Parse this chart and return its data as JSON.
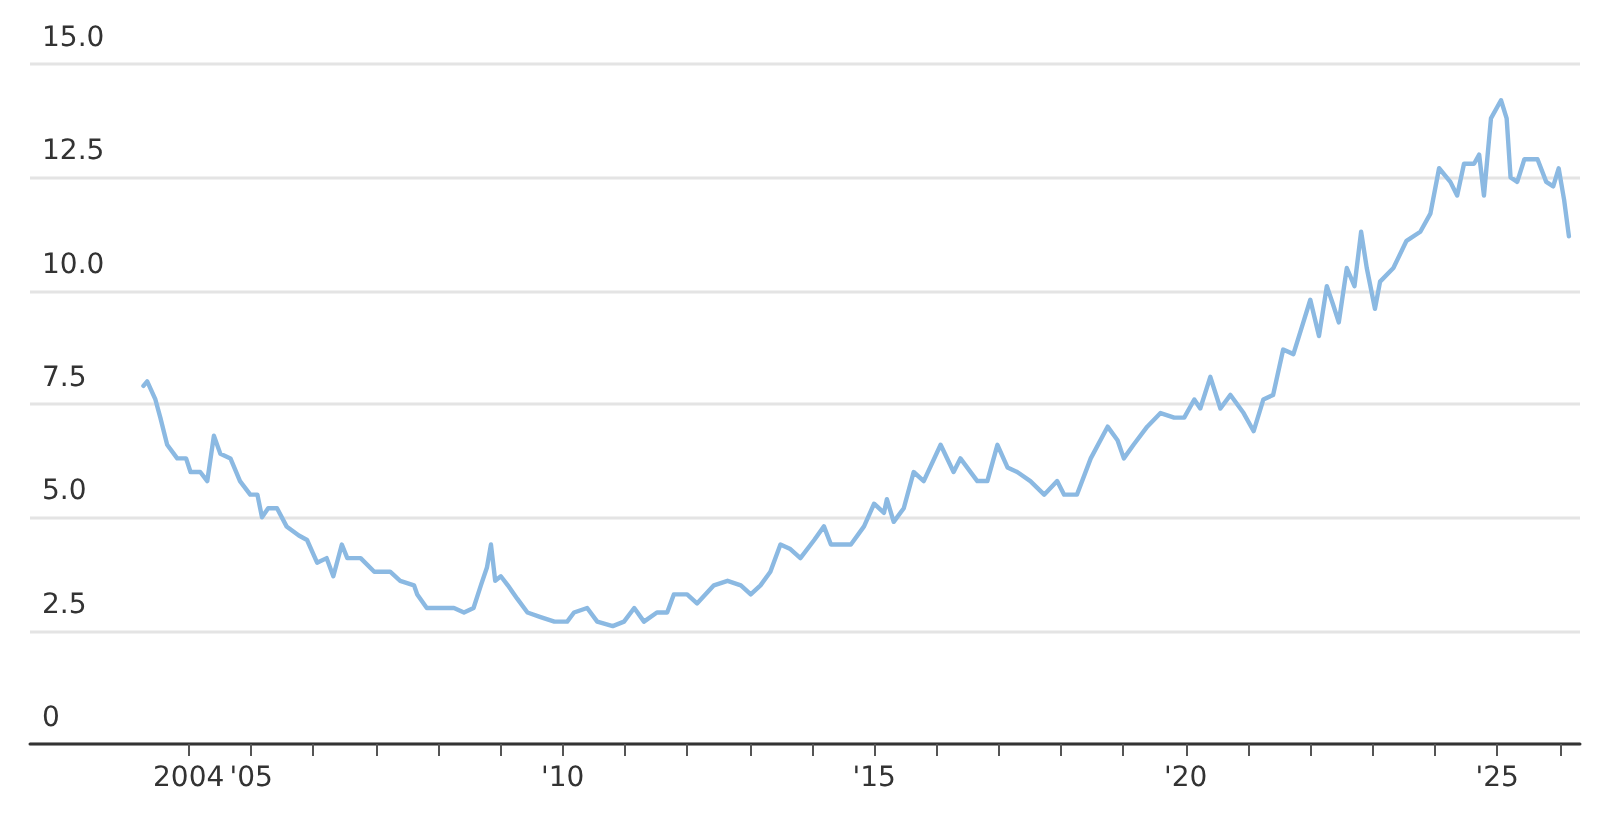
{
  "chart_data": {
    "type": "line",
    "x": [
      "2003-04-11",
      "2003-05-03",
      "2003-06-20",
      "2003-07-19",
      "2003-08-28",
      "2003-10-26",
      "2003-12-17",
      "2004-01-12",
      "2004-03-09",
      "2004-04-19",
      "2004-05-28",
      "2004-07-05",
      "2004-09-02",
      "2004-10-28",
      "2004-12-27",
      "2005-02-07",
      "2005-03-06",
      "2005-04-11",
      "2005-06-02",
      "2005-07-28",
      "2005-10-08",
      "2005-11-25",
      "2006-01-23",
      "2006-03-20",
      "2006-04-28",
      "2006-06-17",
      "2006-07-19",
      "2006-10-05",
      "2006-12-24",
      "2007-03-27",
      "2007-05-25",
      "2007-08-14",
      "2007-09-02",
      "2007-10-28",
      "2008-01-15",
      "2008-04-04",
      "2008-06-02",
      "2008-07-28",
      "2008-09-09",
      "2008-10-15",
      "2008-11-07",
      "2008-12-02",
      "2009-01-04",
      "2009-02-14",
      "2009-04-11",
      "2009-06-09",
      "2009-08-25",
      "2009-11-14",
      "2010-01-28",
      "2010-03-09",
      "2010-05-25",
      "2010-07-23",
      "2010-10-22",
      "2010-12-27",
      "2011-02-25",
      "2011-04-23",
      "2011-07-08",
      "2011-09-06",
      "2011-10-15",
      "2012-01-01",
      "2012-02-28",
      "2012-06-06",
      "2012-08-25",
      "2012-11-11",
      "2013-01-08",
      "2013-03-06",
      "2013-05-03",
      "2013-07-01",
      "2013-08-28",
      "2013-10-26",
      "2014-01-15",
      "2014-03-13",
      "2014-04-23",
      "2014-08-18",
      "2014-11-03",
      "2015-01-01",
      "2015-02-28",
      "2015-03-17",
      "2015-04-26",
      "2015-06-24",
      "2015-08-21",
      "2015-10-19",
      "2016-01-26",
      "2016-04-11",
      "2016-05-21",
      "2016-08-28",
      "2016-10-26",
      "2016-12-24",
      "2017-02-21",
      "2017-04-19",
      "2017-07-05",
      "2017-09-24",
      "2017-12-09",
      "2018-01-19",
      "2018-04-04",
      "2018-06-24",
      "2018-10-01",
      "2018-11-28",
      "2019-01-04",
      "2019-03-02",
      "2019-05-21",
      "2019-08-07",
      "2019-10-26",
      "2019-12-24",
      "2020-02-21",
      "2020-03-27",
      "2020-05-25",
      "2020-07-23",
      "2020-09-20",
      "2020-12-06",
      "2021-02-03",
      "2021-04-01",
      "2021-05-28",
      "2021-07-26",
      "2021-09-24",
      "2021-11-21",
      "2022-01-01",
      "2022-02-21",
      "2022-04-08",
      "2022-05-14",
      "2022-06-17",
      "2022-08-03",
      "2022-09-17",
      "2022-10-26",
      "2022-11-28",
      "2023-01-15",
      "2023-02-14",
      "2023-05-03",
      "2023-07-19",
      "2023-10-08",
      "2023-12-06",
      "2024-01-26",
      "2024-04-01",
      "2024-05-11",
      "2024-06-20",
      "2024-08-18",
      "2024-09-17",
      "2024-10-15",
      "2024-11-25",
      "2025-01-23",
      "2025-02-25",
      "2025-03-20",
      "2025-04-28",
      "2025-06-09",
      "2025-08-25",
      "2025-10-15",
      "2025-11-25",
      "2025-12-27",
      "2026-01-28",
      "2026-02-25"
    ],
    "series": [
      {
        "color": "#8bb9e2",
        "values": [
          7.9,
          8.0,
          7.6,
          7.2,
          6.6,
          6.3,
          6.3,
          6.0,
          6.0,
          5.8,
          6.8,
          6.4,
          6.3,
          5.8,
          5.5,
          5.5,
          5.0,
          5.2,
          5.2,
          4.8,
          4.6,
          4.5,
          4.0,
          4.1,
          3.7,
          4.4,
          4.1,
          4.1,
          3.8,
          3.8,
          3.6,
          3.5,
          3.3,
          3.0,
          3.0,
          3.0,
          2.9,
          3.0,
          3.5,
          3.9,
          4.4,
          3.6,
          3.7,
          3.5,
          3.2,
          2.9,
          2.8,
          2.7,
          2.7,
          2.9,
          3.0,
          2.7,
          2.6,
          2.7,
          3.0,
          2.7,
          2.9,
          2.9,
          3.3,
          3.3,
          3.1,
          3.5,
          3.6,
          3.5,
          3.3,
          3.5,
          3.8,
          4.4,
          4.3,
          4.1,
          4.5,
          4.8,
          4.4,
          4.4,
          4.8,
          5.3,
          5.1,
          5.4,
          4.9,
          5.2,
          6.0,
          5.8,
          6.6,
          6.0,
          6.3,
          5.8,
          5.8,
          6.6,
          6.1,
          6.0,
          5.8,
          5.5,
          5.8,
          5.5,
          5.5,
          6.3,
          7.0,
          6.7,
          6.3,
          6.6,
          7.0,
          7.3,
          7.2,
          7.2,
          7.6,
          7.4,
          8.1,
          7.4,
          7.7,
          7.3,
          6.9,
          7.6,
          7.7,
          8.7,
          8.6,
          9.3,
          9.8,
          9.0,
          10.1,
          9.7,
          9.3,
          10.5,
          10.1,
          11.3,
          10.5,
          9.6,
          10.2,
          10.5,
          11.1,
          11.3,
          11.7,
          12.7,
          12.4,
          12.1,
          12.8,
          12.8,
          13.0,
          12.1,
          13.8,
          14.2,
          13.8,
          12.5,
          12.4,
          12.9,
          12.9,
          12.4,
          12.3,
          12.7,
          12.0,
          11.2
        ]
      }
    ],
    "xlim": [
      "2001-06-15",
      "2026-05-01"
    ],
    "xticks": [
      {
        "value": "2004",
        "label": "2004"
      },
      {
        "value": "2005",
        "label": "'05"
      },
      {
        "value": "2006",
        "label": null
      },
      {
        "value": "2007",
        "label": null
      },
      {
        "value": "2008",
        "label": null
      },
      {
        "value": "2009",
        "label": null
      },
      {
        "value": "2010",
        "label": "'10"
      },
      {
        "value": "2011",
        "label": null
      },
      {
        "value": "2012",
        "label": null
      },
      {
        "value": "2013",
        "label": null
      },
      {
        "value": "2014",
        "label": null
      },
      {
        "value": "2015",
        "label": "'15"
      },
      {
        "value": "2016",
        "label": null
      },
      {
        "value": "2017",
        "label": null
      },
      {
        "value": "2018",
        "label": null
      },
      {
        "value": "2019",
        "label": null
      },
      {
        "value": "2020",
        "label": "'20"
      },
      {
        "value": "2021",
        "label": null
      },
      {
        "value": "2022",
        "label": null
      },
      {
        "value": "2023",
        "label": null
      },
      {
        "value": "2024",
        "label": null
      },
      {
        "value": "2025",
        "label": "'25"
      },
      {
        "value": "2026",
        "label": null
      }
    ],
    "ylim": [
      0,
      15
    ],
    "yticks": [
      0,
      {
        "value": 2.5,
        "label": "2.5"
      },
      {
        "value": 5,
        "label": "5.0"
      },
      {
        "value": 7.5,
        "label": "7.5"
      },
      {
        "value": 10,
        "label": "10.0"
      },
      {
        "value": 12.5,
        "label": "12.5"
      },
      {
        "value": 15,
        "label": "15.0"
      }
    ],
    "grid": "y"
  }
}
